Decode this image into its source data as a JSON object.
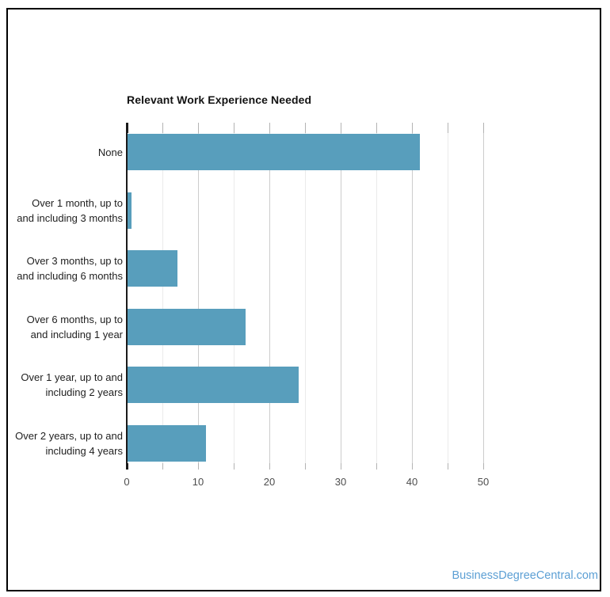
{
  "title": "Relevant Work Experience Needed",
  "watermark": "BusinessDegreeCentral.com",
  "colors": {
    "bar": "#589EBC",
    "watermark": "#5C9FD4",
    "grid_major": "#cccccc",
    "grid_minor": "#ebebeb",
    "axis_line": "#1a1a1a",
    "tick": "#b3b3b3",
    "title_text": "#131313",
    "category_text": "#1f1f1f",
    "axis_value_text": "#4d4d4d"
  },
  "chart_data": {
    "type": "bar",
    "orientation": "horizontal",
    "title": "Relevant Work Experience Needed",
    "categories": [
      "None",
      "Over 1 month, up to and including 3 months",
      "Over 3 months, up to and including 6 months",
      "Over 6 months, up to and including 1 year",
      "Over 1 year, up to and including 2 years",
      "Over 2 years, up to and including 4 years"
    ],
    "categories_wrapped": [
      [
        "None"
      ],
      [
        "Over 1 month, up to",
        "and including 3 months"
      ],
      [
        "Over 3 months, up to",
        "and including 6 months"
      ],
      [
        "Over 6 months, up to",
        "and including 1 year"
      ],
      [
        "Over 1 year, up to and",
        "including 2 years"
      ],
      [
        "Over 2 years, up to and",
        "including 4 years"
      ]
    ],
    "values": [
      41,
      0.5,
      7,
      16.5,
      24,
      11
    ],
    "xlabel": "",
    "ylabel": "",
    "xlim": [
      0,
      50
    ],
    "x_tick_labels": [
      0,
      10,
      20,
      30,
      40,
      50
    ],
    "grid_interval": 5,
    "grid": true,
    "legend": "none"
  }
}
